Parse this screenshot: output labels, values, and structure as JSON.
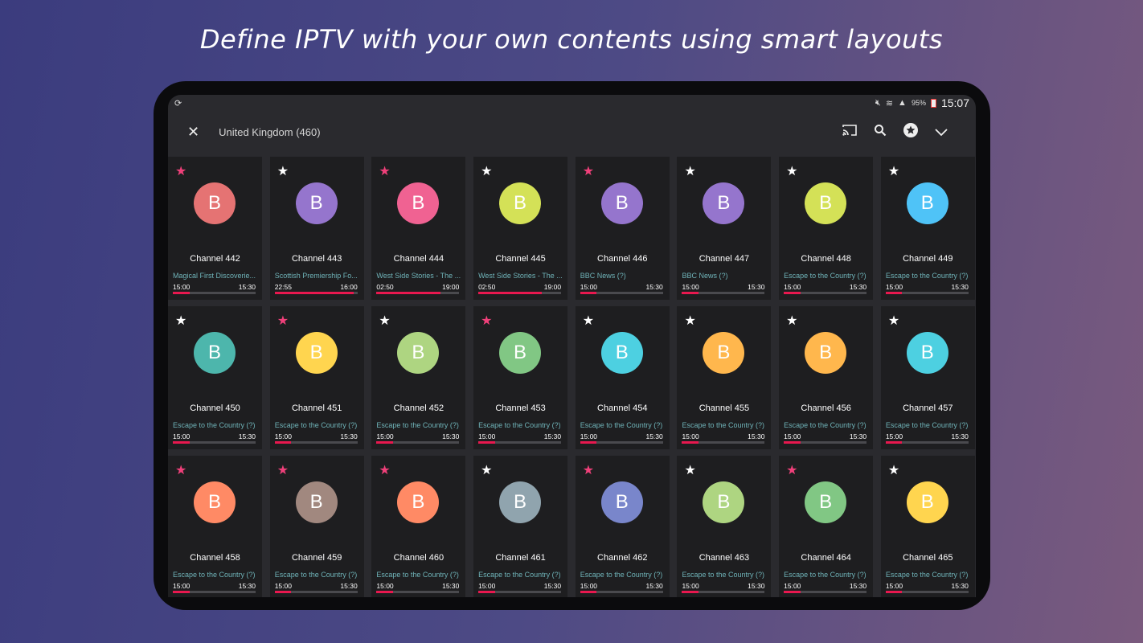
{
  "headline": "Define IPTV with your own contents using smart layouts",
  "status": {
    "battery": "95%",
    "time": "15:07"
  },
  "toolbar": {
    "title": "United Kingdom (460)"
  },
  "colors": {
    "favorite": "#f0407a",
    "star": "#ffffff",
    "progress": "#e8184f"
  },
  "channels": [
    {
      "name": "Channel 442",
      "letter": "B",
      "color": "#e57373",
      "fav": true,
      "program": "Magical First Discoverie...",
      "start": "15:00",
      "end": "15:30",
      "progress": 0.2
    },
    {
      "name": "Channel 443",
      "letter": "B",
      "color": "#9575cd",
      "fav": false,
      "program": "Scottish Premiership Fo...",
      "start": "22:55",
      "end": "16:00",
      "progress": 0.95
    },
    {
      "name": "Channel 444",
      "letter": "B",
      "color": "#f06292",
      "fav": true,
      "program": "West Side Stories - The ...",
      "start": "02:50",
      "end": "19:00",
      "progress": 0.77
    },
    {
      "name": "Channel 445",
      "letter": "B",
      "color": "#d4e157",
      "fav": false,
      "program": "West Side Stories - The ...",
      "start": "02:50",
      "end": "19:00",
      "progress": 0.77
    },
    {
      "name": "Channel 446",
      "letter": "B",
      "color": "#9575cd",
      "fav": true,
      "program": "BBC News (?)",
      "start": "15:00",
      "end": "15:30",
      "progress": 0.2
    },
    {
      "name": "Channel 447",
      "letter": "B",
      "color": "#9575cd",
      "fav": false,
      "program": "BBC News (?)",
      "start": "15:00",
      "end": "15:30",
      "progress": 0.2
    },
    {
      "name": "Channel 448",
      "letter": "B",
      "color": "#d4e157",
      "fav": false,
      "program": "Escape to the Country (?)",
      "start": "15:00",
      "end": "15:30",
      "progress": 0.2
    },
    {
      "name": "Channel 449",
      "letter": "B",
      "color": "#4fc3f7",
      "fav": false,
      "program": "Escape to the Country (?)",
      "start": "15:00",
      "end": "15:30",
      "progress": 0.2
    },
    {
      "name": "Channel 450",
      "letter": "B",
      "color": "#4db6ac",
      "fav": false,
      "program": "Escape to the Country (?)",
      "start": "15:00",
      "end": "15:30",
      "progress": 0.2
    },
    {
      "name": "Channel 451",
      "letter": "B",
      "color": "#ffd54f",
      "fav": true,
      "program": "Escape to the Country (?)",
      "start": "15:00",
      "end": "15:30",
      "progress": 0.2
    },
    {
      "name": "Channel 452",
      "letter": "B",
      "color": "#aed581",
      "fav": false,
      "program": "Escape to the Country (?)",
      "start": "15:00",
      "end": "15:30",
      "progress": 0.2
    },
    {
      "name": "Channel 453",
      "letter": "B",
      "color": "#81c784",
      "fav": true,
      "program": "Escape to the Country (?)",
      "start": "15:00",
      "end": "15:30",
      "progress": 0.2
    },
    {
      "name": "Channel 454",
      "letter": "B",
      "color": "#4dd0e1",
      "fav": false,
      "program": "Escape to the Country (?)",
      "start": "15:00",
      "end": "15:30",
      "progress": 0.2
    },
    {
      "name": "Channel 455",
      "letter": "B",
      "color": "#ffb74d",
      "fav": false,
      "program": "Escape to the Country (?)",
      "start": "15:00",
      "end": "15:30",
      "progress": 0.2
    },
    {
      "name": "Channel 456",
      "letter": "B",
      "color": "#ffb74d",
      "fav": false,
      "program": "Escape to the Country (?)",
      "start": "15:00",
      "end": "15:30",
      "progress": 0.2
    },
    {
      "name": "Channel 457",
      "letter": "B",
      "color": "#4dd0e1",
      "fav": false,
      "program": "Escape to the Country (?)",
      "start": "15:00",
      "end": "15:30",
      "progress": 0.2
    },
    {
      "name": "Channel 458",
      "letter": "B",
      "color": "#ff8a65",
      "fav": true,
      "program": "Escape to the Country (?)",
      "start": "15:00",
      "end": "15:30",
      "progress": 0.2
    },
    {
      "name": "Channel 459",
      "letter": "B",
      "color": "#a1887f",
      "fav": true,
      "program": "Escape to the Country (?)",
      "start": "15:00",
      "end": "15:30",
      "progress": 0.2
    },
    {
      "name": "Channel 460",
      "letter": "B",
      "color": "#ff8a65",
      "fav": true,
      "program": "Escape to the Country (?)",
      "start": "15:00",
      "end": "15:30",
      "progress": 0.2
    },
    {
      "name": "Channel 461",
      "letter": "B",
      "color": "#90a4ae",
      "fav": false,
      "program": "Escape to the Country (?)",
      "start": "15:00",
      "end": "15:30",
      "progress": 0.2
    },
    {
      "name": "Channel 462",
      "letter": "B",
      "color": "#7986cb",
      "fav": true,
      "program": "Escape to the Country (?)",
      "start": "15:00",
      "end": "15:30",
      "progress": 0.2
    },
    {
      "name": "Channel 463",
      "letter": "B",
      "color": "#aed581",
      "fav": false,
      "program": "Escape to the Country (?)",
      "start": "15:00",
      "end": "15:30",
      "progress": 0.2
    },
    {
      "name": "Channel 464",
      "letter": "B",
      "color": "#81c784",
      "fav": true,
      "program": "Escape to the Country (?)",
      "start": "15:00",
      "end": "15:30",
      "progress": 0.2
    },
    {
      "name": "Channel 465",
      "letter": "B",
      "color": "#ffd54f",
      "fav": false,
      "program": "Escape to the Country (?)",
      "start": "15:00",
      "end": "15:30",
      "progress": 0.2
    }
  ]
}
